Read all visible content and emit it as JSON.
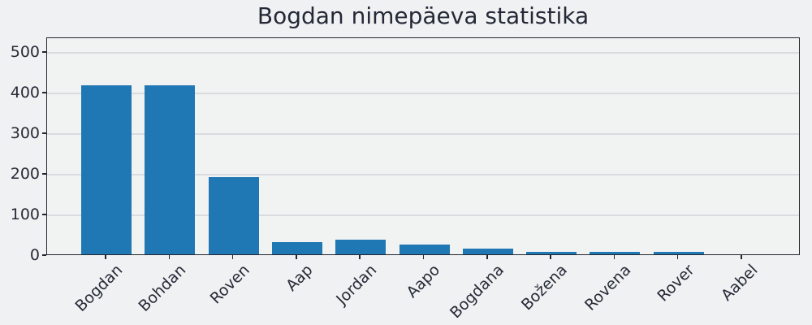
{
  "chart_data": {
    "type": "bar",
    "title": "Bogdan nimepäeva statistika",
    "categories": [
      "Bogdan",
      "Bohdan",
      "Roven",
      "Aap",
      "Jordan",
      "Aapo",
      "Bogdana",
      "Božena",
      "Rovena",
      "Rover",
      "Aabel"
    ],
    "values": [
      417,
      417,
      191,
      31,
      36,
      24,
      15,
      7,
      6,
      6,
      0
    ],
    "xlabel": "",
    "ylabel": "",
    "yticks": [
      0,
      100,
      200,
      300,
      400,
      500
    ],
    "ylim": [
      0,
      536
    ],
    "grid": "horizontal",
    "legend_position": "none",
    "bar_color": "#1f77b4",
    "background_color": "#f0f1f2",
    "spine_color": "#23262e",
    "text_color": "#262b38"
  }
}
